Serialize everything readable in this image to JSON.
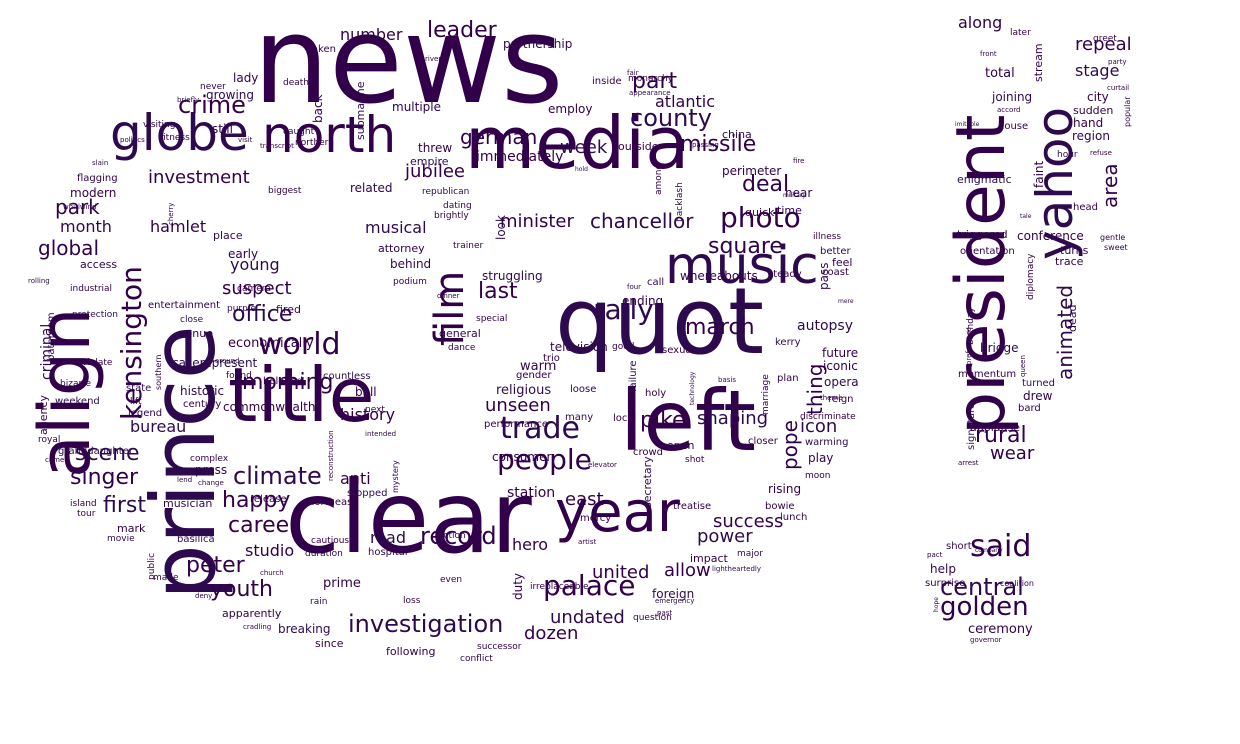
{
  "colors": {
    "background": "#ffffff",
    "ink": "#32004a",
    "ink_alt": "#2d0a4e"
  },
  "words": [
    "news",
    "media",
    "quot",
    "left",
    "clear",
    "prince",
    "align",
    "title",
    "globe",
    "north",
    "year",
    "music",
    "film",
    "president",
    "yahoo",
    "people",
    "palace",
    "trade",
    "kensington",
    "photo",
    "rally",
    "world",
    "crime",
    "county",
    "part",
    "german",
    "chancellor",
    "square",
    "deal",
    "investigation",
    "said",
    "golden",
    "central",
    "missile",
    "leader",
    "week",
    "jubilee",
    "minister",
    "musical",
    "last",
    "happy",
    "climate",
    "career",
    "singer",
    "scene",
    "peter",
    "youth",
    "office",
    "morning",
    "suspect",
    "young",
    "global",
    "park",
    "month",
    "hamlet",
    "investment",
    "first",
    "record",
    "dozen",
    "undated",
    "united",
    "allow",
    "power",
    "success",
    "east",
    "shaping",
    "pike",
    "march",
    "autopsy",
    "thing",
    "pope",
    "icon",
    "rural",
    "wear",
    "animated",
    "area",
    "repeal",
    "stage",
    "along",
    "unseen",
    "road",
    "hero",
    "studio",
    "bureau",
    "anti",
    "history",
    "criminal",
    "number",
    "atlantic",
    "struggling",
    "immediately",
    "threw",
    "empire",
    "related",
    "multiple",
    "submarine",
    "back",
    "employ",
    "partnership",
    "taken",
    "lady",
    "growing",
    "still",
    "death",
    "caught",
    "northern",
    "early",
    "place",
    "access",
    "industrial",
    "protection",
    "violate",
    "bizarre",
    "weekend",
    "agency",
    "royal",
    "granddaughter",
    "island",
    "tour",
    "movie",
    "public",
    "mark",
    "basilica",
    "made",
    "apparently",
    "breaking",
    "since",
    "prime",
    "rain",
    "duration",
    "cautious",
    "hospital",
    "loss",
    "following",
    "conflict",
    "successor",
    "duty",
    "action",
    "even",
    "irreplaceable",
    "foreign",
    "question",
    "impact",
    "major",
    "treatise",
    "mercy",
    "secretary",
    "crowd",
    "shot",
    "open",
    "rising",
    "bowie",
    "lunch",
    "moon",
    "play",
    "warming",
    "reign",
    "discriminate",
    "opera",
    "iconic",
    "future",
    "television",
    "good",
    "sexual",
    "failure",
    "holy",
    "technology",
    "basis",
    "marriage",
    "closer",
    "kerry",
    "plan",
    "steady",
    "pass",
    "feel",
    "coast",
    "better",
    "illness",
    "time",
    "near",
    "perimeter",
    "quick",
    "china",
    "inside",
    "monarchy",
    "appearance",
    "fire",
    "military",
    "call",
    "ending",
    "whereabouts",
    "four",
    "dinner",
    "special",
    "general",
    "dance",
    "podium",
    "behind",
    "attorney",
    "trainer",
    "look",
    "dating",
    "brightly",
    "republican",
    "outside",
    "among",
    "backlash",
    "passing",
    "fair",
    "hold",
    "river",
    "transcript",
    "visit",
    "fitness",
    "visiting",
    "briefly",
    "never",
    "politics",
    "slain",
    "flagging",
    "modern",
    "whirlwind",
    "cherry",
    "camera",
    "rolling",
    "bathroom",
    "entertainment",
    "close",
    "venue",
    "southern",
    "purple",
    "fired",
    "economically",
    "around",
    "found",
    "beloved",
    "countless",
    "ball",
    "next",
    "intended",
    "reconstruction",
    "mystery",
    "stopped",
    "northeast",
    "release",
    "musician",
    "complex",
    "press",
    "change",
    "lend",
    "came",
    "church",
    "deny",
    "cradling",
    "caserepresent",
    "commonwealth",
    "century",
    "historic",
    "legend",
    "lift",
    "state",
    "biggest",
    "later",
    "front",
    "stream",
    "total",
    "joining",
    "accord",
    "house",
    "imitable",
    "hand",
    "sudden",
    "region",
    "city",
    "greet",
    "party",
    "curtail",
    "popular",
    "hour",
    "refuse",
    "faint",
    "enigmatic",
    "head",
    "tale",
    "triggered",
    "conference",
    "orientation",
    "turns",
    "trace",
    "diplomacy",
    "dead",
    "birthday",
    "preference",
    "bridge",
    "queen",
    "momentum",
    "turned",
    "drew",
    "bard",
    "signature",
    "applause",
    "arrest",
    "short",
    "company",
    "pact",
    "help",
    "surprise",
    "coalition",
    "hope",
    "ceremony",
    "governor",
    "lightheartedly",
    "artist",
    "elevator",
    "emergency",
    "past",
    "performance",
    "many",
    "local",
    "loose",
    "warm",
    "gender",
    "trio",
    "religious",
    "consumer",
    "station",
    "mere",
    "theme",
    "gentle",
    "sweet"
  ]
}
